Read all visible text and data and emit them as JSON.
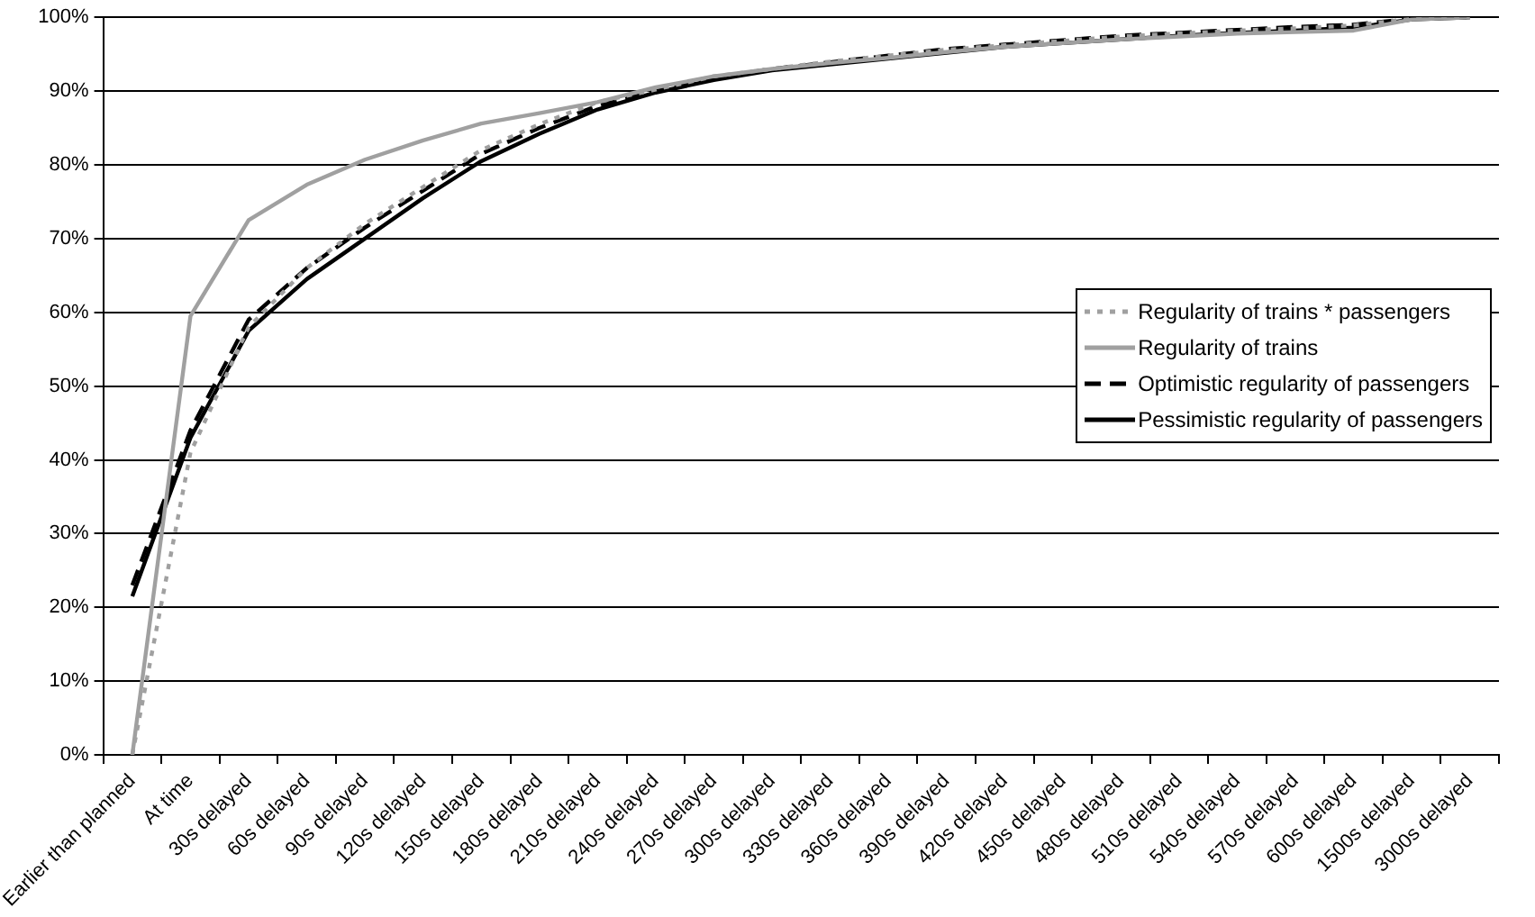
{
  "chart_data": {
    "type": "line",
    "categories": [
      "Earlier than planned",
      "At time",
      "30s delayed",
      "60s delayed",
      "90s delayed",
      "120s delayed",
      "150s delayed",
      "180s delayed",
      "210s delayed",
      "240s delayed",
      "270s delayed",
      "300s delayed",
      "330s delayed",
      "360s delayed",
      "390s delayed",
      "420s delayed",
      "450s delayed",
      "480s delayed",
      "510s delayed",
      "540s delayed",
      "570s delayed",
      "600s delayed",
      "1500s delayed",
      "3000s delayed"
    ],
    "series": [
      {
        "name": "Regularity of trains * passengers",
        "color": "#a0a0a0",
        "line_style": "dotted",
        "values": [
          0,
          41,
          58,
          66,
          72,
          77,
          82,
          85.5,
          88.5,
          90.2,
          92,
          93,
          94,
          94.8,
          95.6,
          96.2,
          96.8,
          97.4,
          97.8,
          98.2,
          98.5,
          98.9,
          99.8,
          100
        ]
      },
      {
        "name": "Regularity of trains",
        "color": "#a0a0a0",
        "line_style": "solid",
        "values": [
          0,
          59.5,
          72.5,
          77.3,
          80.7,
          83.3,
          85.6,
          87,
          88.5,
          90.5,
          92,
          93,
          93.8,
          94.5,
          95.3,
          96,
          96.5,
          97,
          97.4,
          97.8,
          98,
          98.2,
          99.7,
          100
        ]
      },
      {
        "name": "Optimistic regularity of passengers",
        "color": "#000000",
        "line_style": "dashed",
        "values": [
          23,
          44,
          59,
          66,
          71.5,
          76.5,
          81.5,
          85,
          88,
          90,
          91.8,
          93,
          93.9,
          94.8,
          95.7,
          96.3,
          96.9,
          97.5,
          97.9,
          98.3,
          98.7,
          99,
          99.8,
          100
        ]
      },
      {
        "name": "Pessimistic regularity of passengers",
        "color": "#000000",
        "line_style": "solid",
        "values": [
          21.5,
          43,
          57.5,
          64.5,
          70,
          75.5,
          80.5,
          84.2,
          87.5,
          89.8,
          91.5,
          92.8,
          93.6,
          94.4,
          95.2,
          96,
          96.5,
          97,
          97.5,
          97.9,
          98.2,
          98.6,
          99.7,
          100
        ]
      }
    ],
    "ylim": [
      0,
      100
    ],
    "yticks": [
      {
        "value": 0,
        "label": "0%"
      },
      {
        "value": 10,
        "label": "10%"
      },
      {
        "value": 20,
        "label": "20%"
      },
      {
        "value": 30,
        "label": "30%"
      },
      {
        "value": 40,
        "label": "40%"
      },
      {
        "value": 50,
        "label": "50%"
      },
      {
        "value": 60,
        "label": "60%"
      },
      {
        "value": 70,
        "label": "70%"
      },
      {
        "value": 80,
        "label": "80%"
      },
      {
        "value": 90,
        "label": "90%"
      },
      {
        "value": 100,
        "label": "100%"
      }
    ],
    "grid": "y",
    "legend": "right",
    "marker": "none"
  }
}
